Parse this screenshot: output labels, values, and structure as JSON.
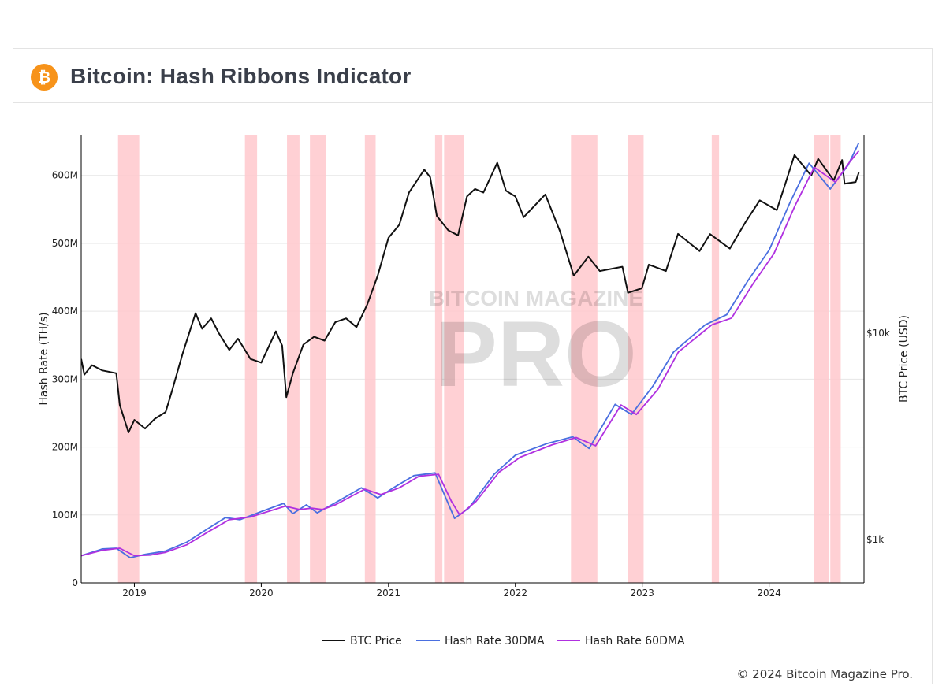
{
  "header": {
    "title": "Bitcoin: Hash Ribbons Indicator",
    "logo_icon": "bitcoin-logo-icon",
    "logo_glyph": "₿"
  },
  "watermark": {
    "line1": "BITCOIN MAGAZINE",
    "line2": "PRO"
  },
  "footer": {
    "copyright": "© 2024 Bitcoin Magazine Pro."
  },
  "colors": {
    "btc_price": "#111111",
    "hash_30dma": "#4a6fe0",
    "hash_60dma": "#b030e0",
    "capitulation_band": "#ffc8cc",
    "grid": "#e6e6e6"
  },
  "chart_data": {
    "type": "line",
    "xlabel": "",
    "x_range": [
      "2018-08-01",
      "2024-09-30"
    ],
    "x_ticks": [
      "2019",
      "2020",
      "2021",
      "2022",
      "2023",
      "2024"
    ],
    "y_left": {
      "label": "Hash Rate (TH/s)",
      "range": [
        0,
        660000000
      ],
      "ticks": [
        0,
        100000000,
        200000000,
        300000000,
        400000000,
        500000000,
        600000000
      ],
      "tick_labels": [
        "0",
        "100M",
        "200M",
        "300M",
        "400M",
        "500M",
        "600M"
      ]
    },
    "y_right": {
      "label": "BTC Price (USD)",
      "scale": "log",
      "ticks": [
        1000,
        10000
      ],
      "tick_labels": [
        "$1k",
        "$10k"
      ]
    },
    "grid": true,
    "legend_position": "bottom-center",
    "capitulation_periods": [
      [
        "2018-11-15",
        "2019-01-15"
      ],
      [
        "2019-11-15",
        "2019-12-20"
      ],
      [
        "2020-03-15",
        "2020-04-20"
      ],
      [
        "2020-05-20",
        "2020-07-05"
      ],
      [
        "2020-10-25",
        "2020-11-25"
      ],
      [
        "2021-05-15",
        "2021-06-05"
      ],
      [
        "2021-06-10",
        "2021-08-05"
      ],
      [
        "2022-06-10",
        "2022-08-25"
      ],
      [
        "2022-11-20",
        "2023-01-05"
      ],
      [
        "2023-07-20",
        "2023-08-10"
      ],
      [
        "2024-05-10",
        "2024-06-20"
      ],
      [
        "2024-06-25",
        "2024-07-25"
      ]
    ],
    "series": [
      {
        "name": "BTC Price",
        "axis": "right",
        "points": [
          [
            "2018-08-01",
            7500
          ],
          [
            "2018-08-10",
            6300
          ],
          [
            "2018-09-01",
            7000
          ],
          [
            "2018-10-01",
            6600
          ],
          [
            "2018-11-10",
            6400
          ],
          [
            "2018-11-20",
            4500
          ],
          [
            "2018-12-15",
            3300
          ],
          [
            "2019-01-01",
            3800
          ],
          [
            "2019-02-01",
            3450
          ],
          [
            "2019-03-01",
            3850
          ],
          [
            "2019-04-01",
            4150
          ],
          [
            "2019-04-20",
            5300
          ],
          [
            "2019-05-20",
            8000
          ],
          [
            "2019-06-26",
            12500
          ],
          [
            "2019-07-15",
            10500
          ],
          [
            "2019-08-10",
            11800
          ],
          [
            "2019-09-01",
            10000
          ],
          [
            "2019-10-01",
            8300
          ],
          [
            "2019-10-26",
            9400
          ],
          [
            "2019-12-01",
            7500
          ],
          [
            "2020-01-01",
            7200
          ],
          [
            "2020-02-12",
            10200
          ],
          [
            "2020-03-01",
            8700
          ],
          [
            "2020-03-13",
            4900
          ],
          [
            "2020-04-01",
            6400
          ],
          [
            "2020-05-01",
            8800
          ],
          [
            "2020-06-01",
            9600
          ],
          [
            "2020-07-01",
            9200
          ],
          [
            "2020-08-01",
            11300
          ],
          [
            "2020-09-01",
            11800
          ],
          [
            "2020-10-01",
            10700
          ],
          [
            "2020-11-01",
            13800
          ],
          [
            "2020-12-01",
            19000
          ],
          [
            "2021-01-01",
            29000
          ],
          [
            "2021-02-01",
            33500
          ],
          [
            "2021-03-01",
            48000
          ],
          [
            "2021-04-14",
            62000
          ],
          [
            "2021-05-01",
            57000
          ],
          [
            "2021-05-20",
            37000
          ],
          [
            "2021-06-22",
            31500
          ],
          [
            "2021-07-20",
            29800
          ],
          [
            "2021-08-15",
            46000
          ],
          [
            "2021-09-07",
            50000
          ],
          [
            "2021-10-01",
            48000
          ],
          [
            "2021-11-10",
            67000
          ],
          [
            "2021-12-05",
            49000
          ],
          [
            "2022-01-01",
            46000
          ],
          [
            "2022-01-25",
            36500
          ],
          [
            "2022-03-28",
            47000
          ],
          [
            "2022-05-10",
            31000
          ],
          [
            "2022-06-18",
            19000
          ],
          [
            "2022-07-30",
            23500
          ],
          [
            "2022-09-01",
            20000
          ],
          [
            "2022-11-05",
            21000
          ],
          [
            "2022-11-21",
            15700
          ],
          [
            "2022-12-31",
            16500
          ],
          [
            "2023-01-20",
            21500
          ],
          [
            "2023-03-10",
            20000
          ],
          [
            "2023-04-14",
            30300
          ],
          [
            "2023-06-15",
            25000
          ],
          [
            "2023-07-15",
            30200
          ],
          [
            "2023-09-10",
            25700
          ],
          [
            "2023-10-25",
            34500
          ],
          [
            "2023-12-05",
            44000
          ],
          [
            "2024-01-23",
            39500
          ],
          [
            "2024-02-15",
            52000
          ],
          [
            "2024-03-14",
            73000
          ],
          [
            "2024-05-01",
            58000
          ],
          [
            "2024-05-21",
            70000
          ],
          [
            "2024-07-05",
            55000
          ],
          [
            "2024-07-29",
            69000
          ],
          [
            "2024-08-05",
            53000
          ],
          [
            "2024-09-06",
            54000
          ],
          [
            "2024-09-15",
            60000
          ]
        ]
      },
      {
        "name": "Hash Rate 30DMA",
        "axis": "left",
        "points": [
          [
            "2018-08-01",
            40000000
          ],
          [
            "2018-10-01",
            50000000
          ],
          [
            "2018-11-10",
            51000000
          ],
          [
            "2018-12-20",
            37000000
          ],
          [
            "2019-02-01",
            42000000
          ],
          [
            "2019-04-01",
            47000000
          ],
          [
            "2019-06-01",
            60000000
          ],
          [
            "2019-08-01",
            80000000
          ],
          [
            "2019-09-20",
            96000000
          ],
          [
            "2019-11-01",
            93000000
          ],
          [
            "2020-01-01",
            105000000
          ],
          [
            "2020-03-05",
            117000000
          ],
          [
            "2020-04-01",
            102000000
          ],
          [
            "2020-05-10",
            115000000
          ],
          [
            "2020-06-10",
            103000000
          ],
          [
            "2020-08-01",
            118000000
          ],
          [
            "2020-10-15",
            140000000
          ],
          [
            "2020-12-01",
            125000000
          ],
          [
            "2021-01-15",
            140000000
          ],
          [
            "2021-03-15",
            158000000
          ],
          [
            "2021-05-15",
            162000000
          ],
          [
            "2021-06-15",
            125000000
          ],
          [
            "2021-07-10",
            95000000
          ],
          [
            "2021-08-20",
            110000000
          ],
          [
            "2021-11-01",
            160000000
          ],
          [
            "2022-01-01",
            188000000
          ],
          [
            "2022-04-01",
            205000000
          ],
          [
            "2022-06-15",
            215000000
          ],
          [
            "2022-08-01",
            198000000
          ],
          [
            "2022-10-15",
            263000000
          ],
          [
            "2022-12-01",
            248000000
          ],
          [
            "2023-02-01",
            290000000
          ],
          [
            "2023-04-01",
            340000000
          ],
          [
            "2023-07-01",
            380000000
          ],
          [
            "2023-09-01",
            395000000
          ],
          [
            "2023-11-01",
            445000000
          ],
          [
            "2024-01-01",
            490000000
          ],
          [
            "2024-03-01",
            560000000
          ],
          [
            "2024-04-25",
            618000000
          ],
          [
            "2024-06-25",
            580000000
          ],
          [
            "2024-08-15",
            615000000
          ],
          [
            "2024-09-15",
            648000000
          ]
        ]
      },
      {
        "name": "Hash Rate 60DMA",
        "axis": "left",
        "points": [
          [
            "2018-08-01",
            40000000
          ],
          [
            "2018-10-01",
            48000000
          ],
          [
            "2018-11-20",
            51000000
          ],
          [
            "2019-01-01",
            40000000
          ],
          [
            "2019-02-15",
            41000000
          ],
          [
            "2019-04-01",
            45000000
          ],
          [
            "2019-06-01",
            56000000
          ],
          [
            "2019-08-01",
            75000000
          ],
          [
            "2019-10-01",
            93000000
          ],
          [
            "2019-12-01",
            97000000
          ],
          [
            "2020-03-10",
            113000000
          ],
          [
            "2020-04-20",
            108000000
          ],
          [
            "2020-05-25",
            110000000
          ],
          [
            "2020-06-25",
            108000000
          ],
          [
            "2020-08-01",
            115000000
          ],
          [
            "2020-10-25",
            138000000
          ],
          [
            "2020-12-10",
            130000000
          ],
          [
            "2021-02-01",
            140000000
          ],
          [
            "2021-03-30",
            157000000
          ],
          [
            "2021-05-25",
            160000000
          ],
          [
            "2021-07-01",
            120000000
          ],
          [
            "2021-07-25",
            100000000
          ],
          [
            "2021-09-10",
            120000000
          ],
          [
            "2021-11-15",
            163000000
          ],
          [
            "2022-01-15",
            185000000
          ],
          [
            "2022-04-15",
            203000000
          ],
          [
            "2022-06-25",
            214000000
          ],
          [
            "2022-08-20",
            202000000
          ],
          [
            "2022-11-01",
            262000000
          ],
          [
            "2022-12-15",
            248000000
          ],
          [
            "2023-02-15",
            285000000
          ],
          [
            "2023-04-15",
            340000000
          ],
          [
            "2023-07-20",
            380000000
          ],
          [
            "2023-09-15",
            390000000
          ],
          [
            "2023-11-15",
            440000000
          ],
          [
            "2024-01-15",
            485000000
          ],
          [
            "2024-03-15",
            555000000
          ],
          [
            "2024-05-10",
            612000000
          ],
          [
            "2024-07-10",
            590000000
          ],
          [
            "2024-08-20",
            620000000
          ],
          [
            "2024-09-15",
            636000000
          ]
        ]
      }
    ]
  }
}
